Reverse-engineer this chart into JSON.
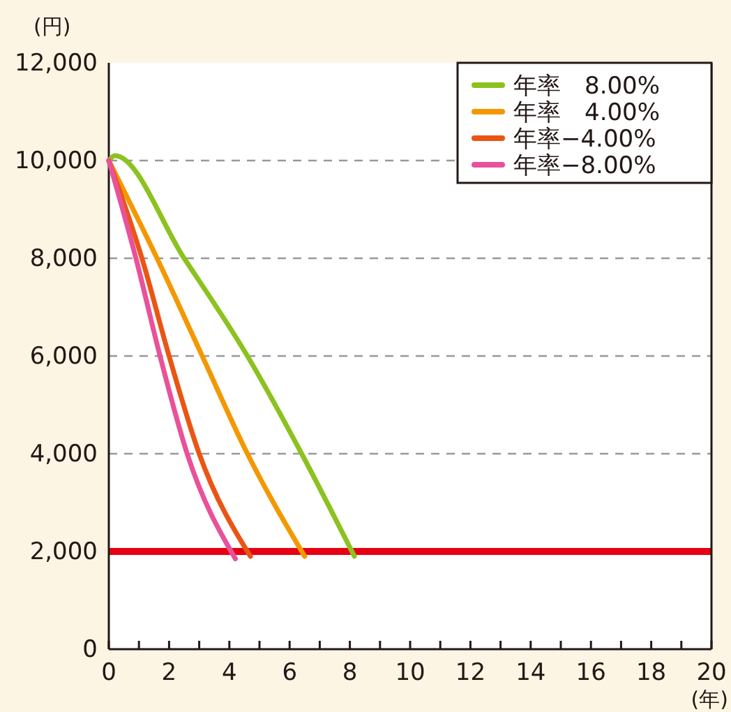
{
  "chart_data": {
    "type": "line",
    "ylabel": "(円)",
    "xlabel": "(年)",
    "xlim": [
      0,
      20
    ],
    "ylim": [
      0,
      12000
    ],
    "xticks": [
      0,
      {
        "value": 1,
        "label": null
      },
      2,
      {
        "value": 3,
        "label": null
      },
      4,
      {
        "value": 5,
        "label": null
      },
      6,
      {
        "value": 7,
        "label": null
      },
      8,
      {
        "value": 9,
        "label": null
      },
      10,
      {
        "value": 11,
        "label": null
      },
      12,
      {
        "value": 13,
        "label": null
      },
      14,
      {
        "value": 15,
        "label": null
      },
      16,
      {
        "value": 17,
        "label": null
      },
      18,
      {
        "value": 19,
        "label": null
      },
      20
    ],
    "yticks": [
      0,
      {
        "value": 2000,
        "label": "2,000"
      },
      {
        "value": 4000,
        "label": "4,000"
      },
      {
        "value": 6000,
        "label": "6,000"
      },
      {
        "value": 8000,
        "label": "8,000"
      },
      {
        "value": 10000,
        "label": "10,000"
      },
      {
        "value": 12000,
        "label": "12,000"
      }
    ],
    "grid": "y",
    "legend": "top right",
    "marker": "none",
    "line_style": "solid",
    "series": [
      {
        "name": "年率　8.00%",
        "color": "#8cc21f",
        "x": [
          0,
          0.2,
          2.5,
          4.6,
          6.4,
          8.15
        ],
        "values": [
          10000,
          10100,
          8000,
          6000,
          4000,
          1900
        ]
      },
      {
        "name": "年率　4.00%",
        "color": "#f39800",
        "x": [
          0,
          1.6,
          3.1,
          4.6,
          6.5
        ],
        "values": [
          10000,
          8000,
          6000,
          4000,
          1900
        ]
      },
      {
        "name": "年率−4.00%",
        "color": "#ea5514",
        "x": [
          0,
          1.1,
          2.0,
          3.0,
          4.7
        ],
        "values": [
          10000,
          8000,
          6000,
          4000,
          1900
        ]
      },
      {
        "name": "年率−8.00%",
        "color": "#e9519a",
        "x": [
          0,
          0.9,
          1.7,
          2.6,
          4.2
        ],
        "values": [
          10000,
          8000,
          6000,
          4000,
          1850
        ]
      }
    ],
    "ref_lines": [
      {
        "axis": "y",
        "value": 2000,
        "color": "#e60012"
      }
    ]
  }
}
